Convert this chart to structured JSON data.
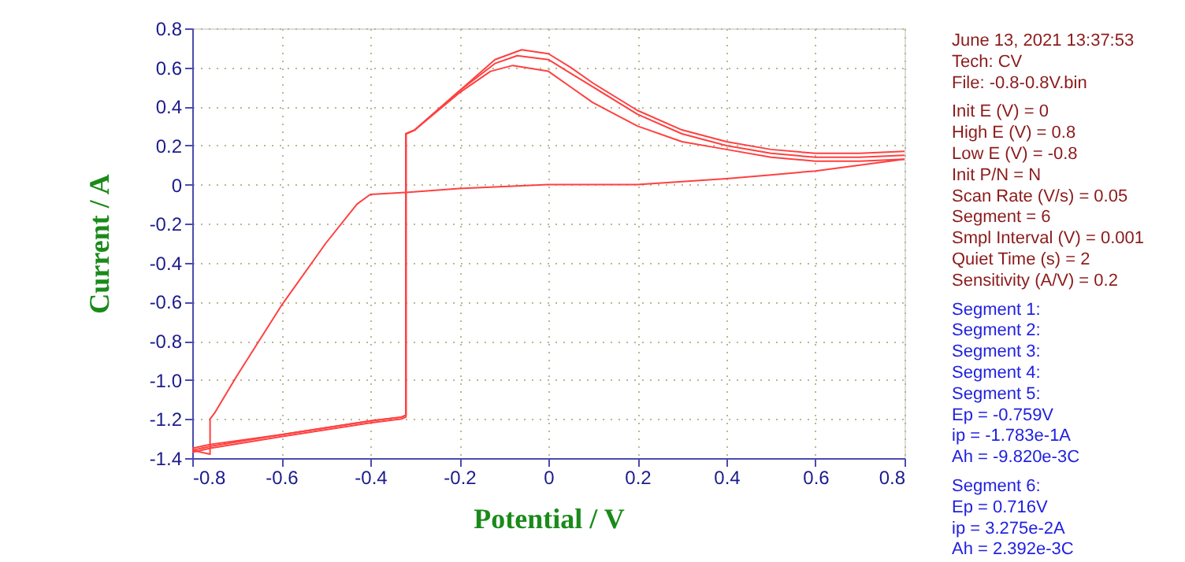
{
  "chart_data": {
    "type": "line",
    "xlabel": "Potential / V",
    "ylabel": "Current / A",
    "xlim": [
      -0.8,
      0.8
    ],
    "xticks": [
      -0.8,
      -0.6,
      -0.4,
      -0.2,
      0,
      0.2,
      0.4,
      0.6,
      0.8
    ],
    "ylim": [
      -1.4,
      0.8
    ],
    "yticks": [
      {
        "value": -1.4,
        "label": "-1.4"
      },
      {
        "value": -1.2,
        "label": "-1.2"
      },
      {
        "value": -1,
        "label": "-1.0"
      },
      {
        "value": -0.8,
        "label": "-0.8"
      },
      {
        "value": -0.6,
        "label": "-0.6"
      },
      {
        "value": -0.4,
        "label": "-0.4"
      },
      {
        "value": -0.2,
        "label": "-0.2"
      },
      0,
      0.2,
      0.4,
      0.6,
      0.8
    ],
    "grid": true,
    "marker": "none",
    "line_style": "solid",
    "series": [
      {
        "color": "#ff4040",
        "x": [
          -0.8,
          -0.76,
          -0.6,
          -0.4,
          -0.33,
          -0.32,
          -0.32,
          -0.3,
          -0.2,
          -0.12,
          -0.06,
          0,
          0.05,
          0.1,
          0.2,
          0.3,
          0.4,
          0.5,
          0.6,
          0.7,
          0.8
        ],
        "values": [
          -1.35,
          -1.33,
          -1.28,
          -1.21,
          -1.19,
          -1.18,
          0.26,
          0.28,
          0.48,
          0.64,
          0.69,
          0.67,
          0.6,
          0.52,
          0.38,
          0.28,
          0.22,
          0.18,
          0.16,
          0.16,
          0.17
        ]
      },
      {
        "color": "#ff4040",
        "x": [
          -0.8,
          -0.76,
          -0.6,
          -0.4,
          -0.33,
          -0.32,
          -0.32,
          -0.3,
          -0.2,
          -0.12,
          -0.07,
          0,
          0.05,
          0.1,
          0.2,
          0.3,
          0.4,
          0.5,
          0.6,
          0.7,
          0.8
        ],
        "values": [
          -1.37,
          -1.35,
          -1.29,
          -1.22,
          -1.2,
          -1.19,
          0.26,
          0.28,
          0.48,
          0.62,
          0.66,
          0.64,
          0.57,
          0.5,
          0.36,
          0.26,
          0.2,
          0.16,
          0.14,
          0.14,
          0.15
        ]
      },
      {
        "color": "#ff4040",
        "x": [
          -0.8,
          -0.76,
          -0.6,
          -0.4,
          -0.33,
          -0.32,
          -0.32,
          -0.3,
          -0.2,
          -0.13,
          -0.08,
          0,
          0.05,
          0.1,
          0.2,
          0.3,
          0.4,
          0.5,
          0.6,
          0.7,
          0.8
        ],
        "values": [
          -1.36,
          -1.34,
          -1.28,
          -1.21,
          -1.19,
          -1.18,
          0.26,
          0.28,
          0.47,
          0.58,
          0.61,
          0.58,
          0.5,
          0.42,
          0.3,
          0.22,
          0.18,
          0.14,
          0.12,
          0.12,
          0.13
        ]
      },
      {
        "color": "#ff4040",
        "x": [
          0.8,
          0.7,
          0.6,
          0.5,
          0.4,
          0.2,
          0,
          -0.2,
          -0.32,
          -0.4,
          -0.43,
          -0.5,
          -0.6,
          -0.7,
          -0.75,
          -0.76,
          -0.76,
          -0.8
        ],
        "values": [
          0.13,
          0.1,
          0.07,
          0.05,
          0.03,
          0.0,
          0.0,
          -0.02,
          -0.04,
          -0.05,
          -0.1,
          -0.3,
          -0.62,
          -0.98,
          -1.17,
          -1.2,
          -1.38,
          -1.36
        ]
      }
    ],
    "annotations": [
      "June 13, 2021   13:37:53",
      "Tech: CV",
      "File: -0.8-0.8V.bin",
      "Init E (V) = 0",
      "High E (V) = 0.8",
      "Low E (V) = -0.8",
      "Init P/N = N",
      "Scan Rate (V/s) = 0.05",
      "Segment = 6",
      "Smpl Interval (V) = 0.001",
      "Quiet Time (s) = 2",
      "Sensitivity (A/V) = 0.2",
      "Segment 1:",
      "Segment 2:",
      "Segment 3:",
      "Segment 4:",
      "Segment 5:",
      "Ep = -0.759V",
      "ip = -1.783e-1A",
      "Ah = -9.820e-3C",
      "Segment 6:",
      "Ep = 0.716V",
      "ip = 3.275e-2A",
      "Ah = 2.392e-3C"
    ]
  }
}
